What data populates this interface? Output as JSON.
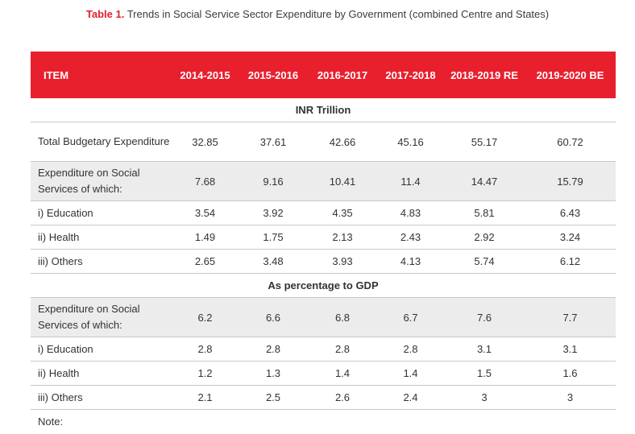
{
  "caption": {
    "number": "Table 1.",
    "text": " Trends in Social Service Sector Expenditure by Government (combined Centre and States)"
  },
  "header": [
    "ITEM",
    "2014-2015",
    "2015-2016",
    "2016-2017",
    "2017-2018",
    "2018-2019 RE",
    "2019-2020 BE"
  ],
  "sections": [
    {
      "title": "INR Trillion",
      "rows": [
        {
          "label": "Total Budgetary Expenditure",
          "values": [
            "32.85",
            "37.61",
            "42.66",
            "45.16",
            "55.17",
            "60.72"
          ]
        },
        {
          "label": "Expenditure on Social Services of which:",
          "values": [
            "7.68",
            "9.16",
            "10.41",
            "11.4",
            "14.47",
            "15.79"
          ]
        },
        {
          "label": "i) Education",
          "values": [
            "3.54",
            "3.92",
            "4.35",
            "4.83",
            "5.81",
            "6.43"
          ]
        },
        {
          "label": "ii) Health",
          "values": [
            "1.49",
            "1.75",
            "2.13",
            "2.43",
            "2.92",
            "3.24"
          ]
        },
        {
          "label": "iii) Others",
          "values": [
            "2.65",
            "3.48",
            "3.93",
            "4.13",
            "5.74",
            "6.12"
          ]
        }
      ]
    },
    {
      "title": "As percentage to GDP",
      "rows": [
        {
          "label": "Expenditure on Social Services of which:",
          "values": [
            "6.2",
            "6.6",
            "6.8",
            "6.7",
            "7.6",
            "7.7"
          ]
        },
        {
          "label": "i) Education",
          "values": [
            "2.8",
            "2.8",
            "2.8",
            "2.8",
            "3.1",
            "3.1"
          ]
        },
        {
          "label": "ii) Health",
          "values": [
            "1.2",
            "1.3",
            "1.4",
            "1.4",
            "1.5",
            "1.6"
          ]
        },
        {
          "label": "iii) Others",
          "values": [
            "2.1",
            "2.5",
            "2.6",
            "2.4",
            "3",
            "3"
          ]
        }
      ]
    }
  ],
  "note": "Note:",
  "colors": {
    "accent": "#e8202e",
    "shade": "#ececec",
    "rule": "#c8c8c8"
  }
}
